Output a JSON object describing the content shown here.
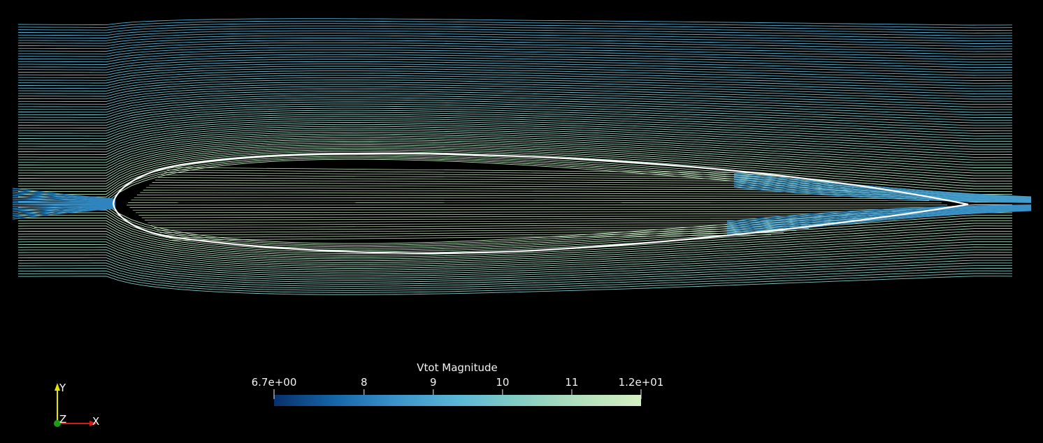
{
  "colorbar": {
    "title": "Vtot Magnitude",
    "min_label": "6.7e+00",
    "max_label": "1.2e+01",
    "range": [
      6.7,
      12
    ],
    "ticks": [
      {
        "value": 8,
        "label": "8"
      },
      {
        "value": 9,
        "label": "9"
      },
      {
        "value": 10,
        "label": "10"
      },
      {
        "value": 11,
        "label": "11"
      }
    ],
    "colormap": [
      "#08306b",
      "#1666a8",
      "#3b94c9",
      "#5ab6d6",
      "#85cdc4",
      "#b2e0bc",
      "#d6efc4"
    ]
  },
  "orientation_axes": {
    "x_label": "X",
    "y_label": "Y",
    "z_label": "Z",
    "x_color": "#d11a1a",
    "y_color": "#e6e600",
    "z_color": "#1a9e1a"
  },
  "colors": {
    "background": "#000000",
    "airfoil_outline": "#ffffff"
  }
}
